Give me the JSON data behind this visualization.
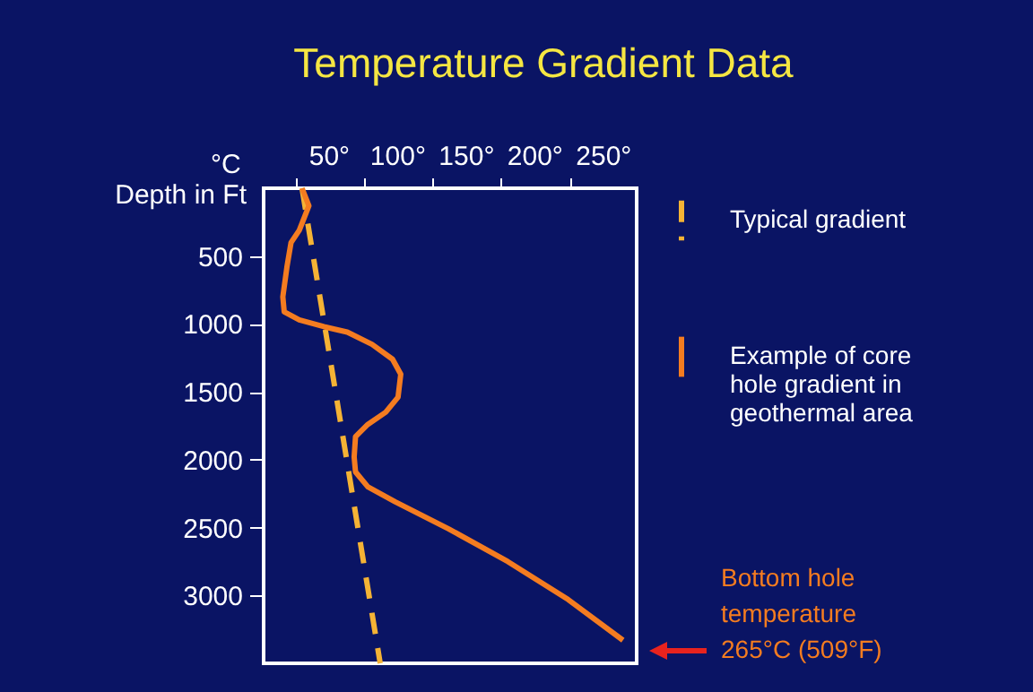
{
  "chart_data": {
    "type": "line",
    "title": "Temperature Gradient Data",
    "xlabel": "°C",
    "ylabel": "Depth in Ft",
    "xlim": [
      2,
      274
    ],
    "ylim": [
      3500,
      0
    ],
    "xticks": [
      {
        "value": 25,
        "label": null
      },
      {
        "value": 50,
        "label": "50°"
      },
      {
        "value": 75,
        "label": null
      },
      {
        "value": 100,
        "label": "100°"
      },
      {
        "value": 125,
        "label": null
      },
      {
        "value": 150,
        "label": "150°"
      },
      {
        "value": 175,
        "label": null
      },
      {
        "value": 200,
        "label": "200°"
      },
      {
        "value": 225,
        "label": null
      },
      {
        "value": 250,
        "label": "250°"
      }
    ],
    "yticks": [
      500,
      1000,
      1500,
      2000,
      2500,
      3000
    ],
    "grid": false,
    "legend": "right",
    "series": [
      {
        "name": "Typical gradient",
        "color": "#f5b335",
        "line_style": "dashed",
        "x": [
          30,
          87
        ],
        "values": [
          0,
          3500
        ]
      },
      {
        "name": "Example of core hole gradient in geothermal area",
        "color": "#f47c20",
        "line_style": "solid",
        "x": [
          30,
          35,
          28,
          22,
          19,
          16,
          17,
          28,
          46,
          63,
          81,
          96,
          102,
          100,
          91,
          78,
          69,
          68,
          69,
          78,
          98,
          137,
          180,
          224,
          264
        ],
        "values": [
          0,
          130,
          310,
          400,
          580,
          800,
          910,
          970,
          1020,
          1060,
          1150,
          1260,
          1370,
          1540,
          1650,
          1740,
          1830,
          1980,
          2090,
          2200,
          2310,
          2510,
          2750,
          3030,
          3330
        ]
      }
    ],
    "annotations": [
      "Bottom hole temperature 265°C (509°F)"
    ]
  }
}
